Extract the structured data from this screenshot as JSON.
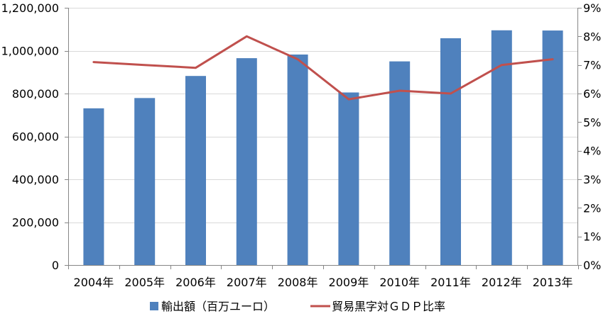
{
  "chart_data": {
    "type": "bar+line",
    "categories": [
      "2004年",
      "2005年",
      "2006年",
      "2007年",
      "2008年",
      "2009年",
      "2010年",
      "2011年",
      "2012年",
      "2013年"
    ],
    "series": [
      {
        "name": "輸出額（百万ユーロ）",
        "type": "bar",
        "axis": "left",
        "color": "#4f81bd",
        "values": [
          731000,
          779000,
          882000,
          965000,
          982000,
          805000,
          950000,
          1058000,
          1095000,
          1094000
        ]
      },
      {
        "name": "貿易黒字対ＧＤＰ比率",
        "type": "line",
        "axis": "right",
        "color": "#c0504d",
        "values": [
          7.1,
          7.0,
          6.9,
          8.0,
          7.2,
          5.8,
          6.1,
          6.0,
          7.0,
          7.2
        ]
      }
    ],
    "y_left": {
      "range": [
        0,
        1200000
      ],
      "ticks": [
        0,
        200000,
        400000,
        600000,
        800000,
        1000000,
        1200000
      ],
      "tick_labels": [
        "0",
        "200,000",
        "400,000",
        "600,000",
        "800,000",
        "1,000,000",
        "1,200,000"
      ]
    },
    "y_right": {
      "range": [
        0,
        9
      ],
      "ticks": [
        0,
        1,
        2,
        3,
        4,
        5,
        6,
        7,
        8,
        9
      ],
      "tick_labels": [
        "0%",
        "1%",
        "2%",
        "3%",
        "4%",
        "5%",
        "6%",
        "7%",
        "8%",
        "9%"
      ]
    },
    "grid": true,
    "legend_position": "bottom"
  }
}
